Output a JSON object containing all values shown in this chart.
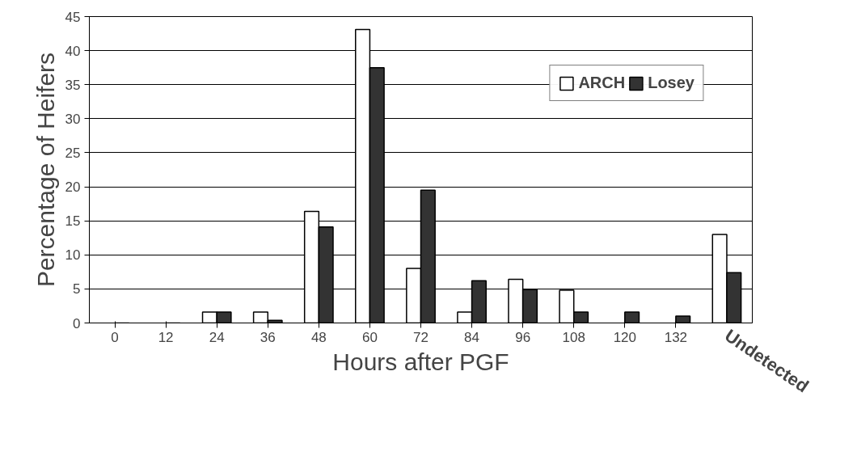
{
  "chart_data": {
    "type": "bar",
    "xlabel": "Hours after PGF",
    "ylabel": "Percentage of Heifers",
    "categories": [
      "0",
      "12",
      "24",
      "36",
      "48",
      "60",
      "72",
      "84",
      "96",
      "108",
      "120",
      "132",
      "Undetected"
    ],
    "series": [
      {
        "name": "ARCH",
        "color": "#ffffff",
        "values": [
          0,
          0,
          1.6,
          1.6,
          16.4,
          43.1,
          8,
          1.6,
          6.4,
          4.8,
          0,
          0,
          13
        ]
      },
      {
        "name": "Losey",
        "color": "#333333",
        "values": [
          0,
          0,
          1.6,
          0.4,
          14.1,
          37.5,
          19.5,
          6.2,
          4.9,
          1.6,
          1.6,
          1,
          7.4
        ]
      }
    ],
    "ylim": [
      0,
      45
    ],
    "yticks": [
      0,
      5,
      10,
      15,
      20,
      25,
      30,
      35,
      40,
      45
    ],
    "grid": "y",
    "legend": "top right"
  }
}
